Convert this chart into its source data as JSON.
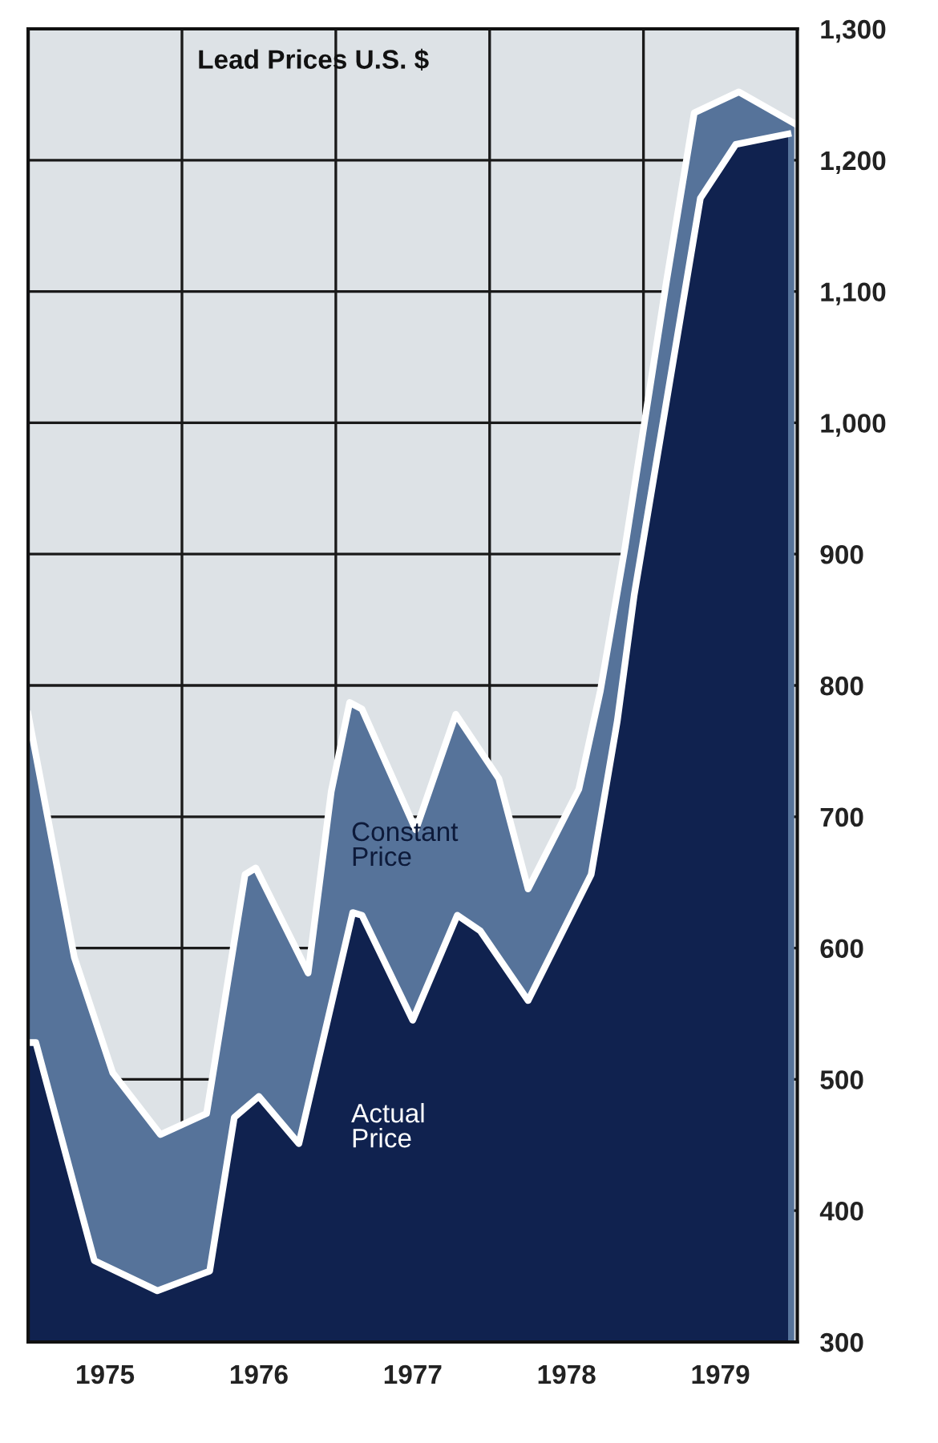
{
  "chart_data": {
    "type": "area",
    "title": "Lead Prices U.S. $",
    "x": [
      1975.0,
      1975.3,
      1975.55,
      1975.86,
      1976.16,
      1976.41,
      1976.48,
      1976.82,
      1976.97,
      1977.09,
      1977.17,
      1977.52,
      1977.78,
      1978.06,
      1978.25,
      1978.58,
      1978.72,
      1978.88,
      1979.15,
      1979.33,
      1979.62,
      1979.98
    ],
    "series": [
      {
        "name": "Constant Price",
        "color": "#56739a",
        "values": [
          778,
          593,
          505,
          458,
          474,
          656,
          661,
          581,
          719,
          787,
          782,
          690,
          778,
          729,
          645,
          721,
          796,
          905,
          1108,
          1236,
          1252,
          1228
        ]
      },
      {
        "name": "Actual Price",
        "color": "#10224f",
        "x": [
          1975.0,
          1975.05,
          1975.43,
          1975.84,
          1976.18,
          1976.34,
          1976.5,
          1976.76,
          1977.11,
          1977.17,
          1977.5,
          1977.79,
          1977.94,
          1978.25,
          1978.66,
          1978.83,
          1978.94,
          1979.37,
          1979.6,
          1979.94
        ],
        "values": [
          528,
          528,
          362,
          339,
          354,
          471,
          487,
          451,
          627,
          625,
          545,
          625,
          613,
          560,
          656,
          773,
          869,
          1171,
          1212,
          1220
        ]
      }
    ],
    "xlim": [
      1975,
      1980
    ],
    "xticks": [
      {
        "value": 1975.5,
        "label": "1975"
      },
      {
        "value": 1976,
        "label": null
      },
      {
        "value": 1976.5,
        "label": "1976"
      },
      {
        "value": 1977,
        "label": null
      },
      {
        "value": 1977.5,
        "label": "1977"
      },
      {
        "value": 1978,
        "label": null
      },
      {
        "value": 1978.5,
        "label": "1978"
      },
      {
        "value": 1979,
        "label": null
      },
      {
        "value": 1979.5,
        "label": "1979"
      }
    ],
    "ylim": [
      300,
      1300
    ],
    "yticks": [
      {
        "value": 300,
        "label": "300"
      },
      {
        "value": 400,
        "label": "400"
      },
      {
        "value": 500,
        "label": "500"
      },
      {
        "value": 600,
        "label": "600"
      },
      {
        "value": 700,
        "label": "700"
      },
      {
        "value": 800,
        "label": "800"
      },
      {
        "value": 900,
        "label": "900"
      },
      {
        "value": 1000,
        "label": "1,000"
      },
      {
        "value": 1100,
        "label": "1,100"
      },
      {
        "value": 1200,
        "label": "1,200"
      },
      {
        "value": 1300,
        "label": "1,300"
      }
    ],
    "grid": true,
    "legend": false,
    "line_style": "solid",
    "marker": "none"
  }
}
